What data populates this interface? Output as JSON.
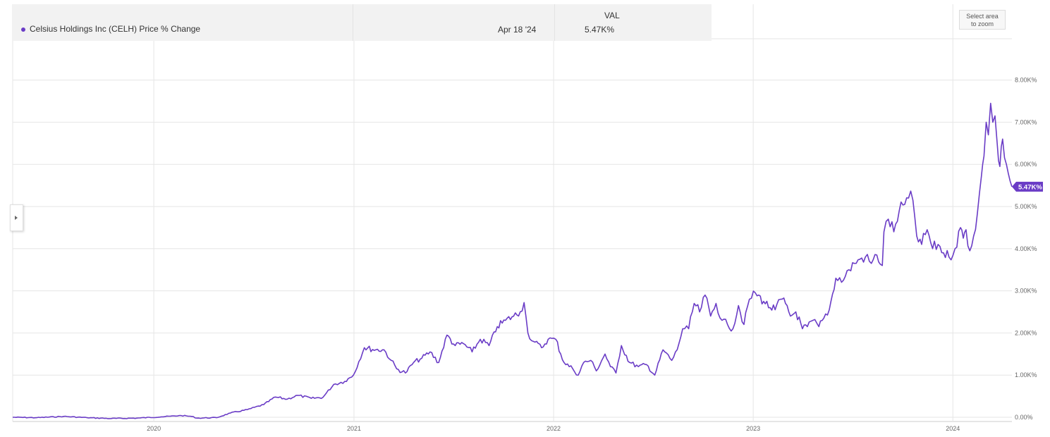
{
  "legend": {
    "series_name": "Celsius Holdings Inc (CELH) Price % Change",
    "column_header": "VAL",
    "date": "Apr 18 '24",
    "value": "5.47K%"
  },
  "zoom_button": {
    "line1": "Select area",
    "line2": "to zoom"
  },
  "colors": {
    "series": "#6a3cc6",
    "grid": "#e6e6e6",
    "axis_text": "#666666"
  },
  "chart_data": {
    "type": "line",
    "title": "",
    "xlabel": "",
    "ylabel": "",
    "grid": true,
    "ylim": [
      0,
      9000
    ],
    "xlim": [
      "2019-04-18",
      "2024-04-18"
    ],
    "y_ticks": [
      {
        "value": 0,
        "label": "0.00%"
      },
      {
        "value": 1000,
        "label": "1.00K%"
      },
      {
        "value": 2000,
        "label": "2.00K%"
      },
      {
        "value": 3000,
        "label": "3.00K%"
      },
      {
        "value": 4000,
        "label": "4.00K%"
      },
      {
        "value": 5000,
        "label": "5.00K%"
      },
      {
        "value": 6000,
        "label": "6.00K%"
      },
      {
        "value": 7000,
        "label": "7.00K%"
      },
      {
        "value": 8000,
        "label": "8.00K%"
      }
    ],
    "x_ticks": [
      {
        "value": "2020-01-01",
        "label": "2020"
      },
      {
        "value": "2021-01-01",
        "label": "2021"
      },
      {
        "value": "2022-01-01",
        "label": "2022"
      },
      {
        "value": "2023-01-01",
        "label": "2023"
      },
      {
        "value": "2024-01-01",
        "label": "2024"
      }
    ],
    "last_value_label": "5.47K%",
    "series": [
      {
        "name": "Celsius Holdings Inc (CELH) Price % Change",
        "points": [
          [
            "2019-04-18",
            0
          ],
          [
            "2019-06-01",
            -10
          ],
          [
            "2019-07-20",
            20
          ],
          [
            "2019-09-01",
            -10
          ],
          [
            "2019-10-15",
            -30
          ],
          [
            "2019-12-01",
            -20
          ],
          [
            "2020-01-15",
            10
          ],
          [
            "2020-02-20",
            40
          ],
          [
            "2020-03-10",
            20
          ],
          [
            "2020-03-20",
            -20
          ],
          [
            "2020-04-25",
            -10
          ],
          [
            "2020-05-20",
            100
          ],
          [
            "2020-06-20",
            180
          ],
          [
            "2020-07-20",
            300
          ],
          [
            "2020-08-10",
            480
          ],
          [
            "2020-09-01",
            430
          ],
          [
            "2020-09-20",
            520
          ],
          [
            "2020-10-15",
            450
          ],
          [
            "2020-11-05",
            470
          ],
          [
            "2020-11-25",
            780
          ],
          [
            "2020-12-15",
            850
          ],
          [
            "2020-12-31",
            1000
          ],
          [
            "2021-01-20",
            1650
          ],
          [
            "2021-02-10",
            1600
          ],
          [
            "2021-02-25",
            1600
          ],
          [
            "2021-03-10",
            1350
          ],
          [
            "2021-03-20",
            1150
          ],
          [
            "2021-04-05",
            1050
          ],
          [
            "2021-04-20",
            1300
          ],
          [
            "2021-05-05",
            1400
          ],
          [
            "2021-05-20",
            1550
          ],
          [
            "2021-06-05",
            1300
          ],
          [
            "2021-06-20",
            1950
          ],
          [
            "2021-07-05",
            1700
          ],
          [
            "2021-07-20",
            1750
          ],
          [
            "2021-08-05",
            1550
          ],
          [
            "2021-08-20",
            1850
          ],
          [
            "2021-09-05",
            1700
          ],
          [
            "2021-09-20",
            2150
          ],
          [
            "2021-10-05",
            2300
          ],
          [
            "2021-10-20",
            2400
          ],
          [
            "2021-11-01",
            2500
          ],
          [
            "2021-11-08",
            2720
          ],
          [
            "2021-11-15",
            2000
          ],
          [
            "2021-11-25",
            1800
          ],
          [
            "2021-12-10",
            1650
          ],
          [
            "2021-12-22",
            1850
          ],
          [
            "2022-01-05",
            1850
          ],
          [
            "2022-01-20",
            1300
          ],
          [
            "2022-02-05",
            1150
          ],
          [
            "2022-02-15",
            1000
          ],
          [
            "2022-02-25",
            1300
          ],
          [
            "2022-03-10",
            1350
          ],
          [
            "2022-03-20",
            1100
          ],
          [
            "2022-04-05",
            1500
          ],
          [
            "2022-04-15",
            1200
          ],
          [
            "2022-04-25",
            1050
          ],
          [
            "2022-05-05",
            1700
          ],
          [
            "2022-05-20",
            1300
          ],
          [
            "2022-06-05",
            1200
          ],
          [
            "2022-06-20",
            1250
          ],
          [
            "2022-07-05",
            1000
          ],
          [
            "2022-07-20",
            1600
          ],
          [
            "2022-08-05",
            1350
          ],
          [
            "2022-08-15",
            1600
          ],
          [
            "2022-08-25",
            2100
          ],
          [
            "2022-09-05",
            2100
          ],
          [
            "2022-09-15",
            2700
          ],
          [
            "2022-09-25",
            2500
          ],
          [
            "2022-10-05",
            2900
          ],
          [
            "2022-10-15",
            2400
          ],
          [
            "2022-10-25",
            2700
          ],
          [
            "2022-11-05",
            2300
          ],
          [
            "2022-11-15",
            2200
          ],
          [
            "2022-11-25",
            2100
          ],
          [
            "2022-12-05",
            2650
          ],
          [
            "2022-12-15",
            2200
          ],
          [
            "2022-12-25",
            2800
          ],
          [
            "2023-01-05",
            2950
          ],
          [
            "2023-01-20",
            2750
          ],
          [
            "2023-02-01",
            2600
          ],
          [
            "2023-02-10",
            2550
          ],
          [
            "2023-02-20",
            2800
          ],
          [
            "2023-03-01",
            2700
          ],
          [
            "2023-03-10",
            2400
          ],
          [
            "2023-03-20",
            2500
          ],
          [
            "2023-04-01",
            2100
          ],
          [
            "2023-04-10",
            2150
          ],
          [
            "2023-04-20",
            2300
          ],
          [
            "2023-05-01",
            2150
          ],
          [
            "2023-05-10",
            2350
          ],
          [
            "2023-05-20",
            2550
          ],
          [
            "2023-06-01",
            3300
          ],
          [
            "2023-06-15",
            3250
          ],
          [
            "2023-06-25",
            3500
          ],
          [
            "2023-07-05",
            3650
          ],
          [
            "2023-07-15",
            3750
          ],
          [
            "2023-07-25",
            3800
          ],
          [
            "2023-08-05",
            3650
          ],
          [
            "2023-08-15",
            3850
          ],
          [
            "2023-08-25",
            3600
          ],
          [
            "2023-08-28",
            4400
          ],
          [
            "2023-09-05",
            4700
          ],
          [
            "2023-09-15",
            4400
          ],
          [
            "2023-09-25",
            4900
          ],
          [
            "2023-10-05",
            5050
          ],
          [
            "2023-10-12",
            5200
          ],
          [
            "2023-10-20",
            5150
          ],
          [
            "2023-10-27",
            4300
          ],
          [
            "2023-11-05",
            4100
          ],
          [
            "2023-11-15",
            4450
          ],
          [
            "2023-11-25",
            4000
          ],
          [
            "2023-12-05",
            4100
          ],
          [
            "2023-12-15",
            3900
          ],
          [
            "2023-12-25",
            3800
          ],
          [
            "2024-01-05",
            4000
          ],
          [
            "2024-01-15",
            4500
          ],
          [
            "2024-01-20",
            4250
          ],
          [
            "2024-01-25",
            4450
          ],
          [
            "2024-02-01",
            3950
          ],
          [
            "2024-02-08",
            4300
          ],
          [
            "2024-02-15",
            4850
          ],
          [
            "2024-02-22",
            5700
          ],
          [
            "2024-02-27",
            6200
          ],
          [
            "2024-03-02",
            7000
          ],
          [
            "2024-03-06",
            6700
          ],
          [
            "2024-03-10",
            7450
          ],
          [
            "2024-03-14",
            7000
          ],
          [
            "2024-03-18",
            7150
          ],
          [
            "2024-03-22",
            6500
          ],
          [
            "2024-03-27",
            5950
          ],
          [
            "2024-04-01",
            6600
          ],
          [
            "2024-04-08",
            6000
          ],
          [
            "2024-04-18",
            5470
          ]
        ]
      }
    ]
  }
}
